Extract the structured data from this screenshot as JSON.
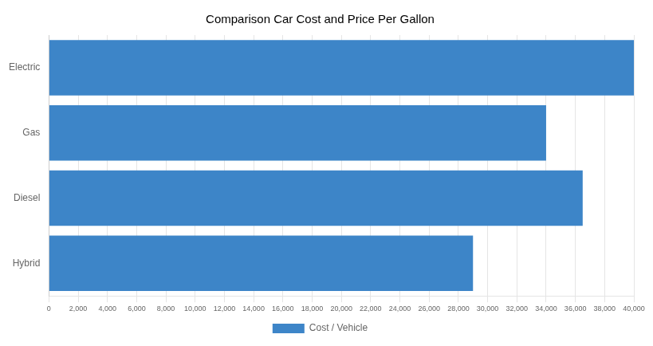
{
  "chart_data": {
    "type": "bar",
    "orientation": "horizontal",
    "title": "Comparison Car Cost and Price Per Gallon",
    "categories": [
      "Electric",
      "Gas",
      "Diesel",
      "Hybrid"
    ],
    "series": [
      {
        "name": "Cost / Vehicle",
        "color": "#3d85c8",
        "values": [
          40000,
          34000,
          36500,
          29000
        ]
      }
    ],
    "xlim": [
      0,
      40000
    ],
    "xticks": [
      0,
      {
        "value": 2000,
        "label": "2,000"
      },
      {
        "value": 4000,
        "label": "4,000"
      },
      {
        "value": 6000,
        "label": "6,000"
      },
      {
        "value": 8000,
        "label": "8,000"
      },
      {
        "value": 10000,
        "label": "10,000"
      },
      {
        "value": 12000,
        "label": "12,000"
      },
      {
        "value": 14000,
        "label": "14,000"
      },
      {
        "value": 16000,
        "label": "16,000"
      },
      {
        "value": 18000,
        "label": "18,000"
      },
      {
        "value": 20000,
        "label": "20,000"
      },
      {
        "value": 22000,
        "label": "22,000"
      },
      {
        "value": 24000,
        "label": "24,000"
      },
      {
        "value": 26000,
        "label": "26,000"
      },
      {
        "value": 28000,
        "label": "28,000"
      },
      {
        "value": 30000,
        "label": "30,000"
      },
      {
        "value": 32000,
        "label": "32,000"
      },
      {
        "value": 34000,
        "label": "34,000"
      },
      {
        "value": 36000,
        "label": "36,000"
      },
      {
        "value": 38000,
        "label": "38,000"
      },
      {
        "value": 40000,
        "label": "40,000"
      }
    ],
    "grid": true,
    "legend": "bottom"
  }
}
